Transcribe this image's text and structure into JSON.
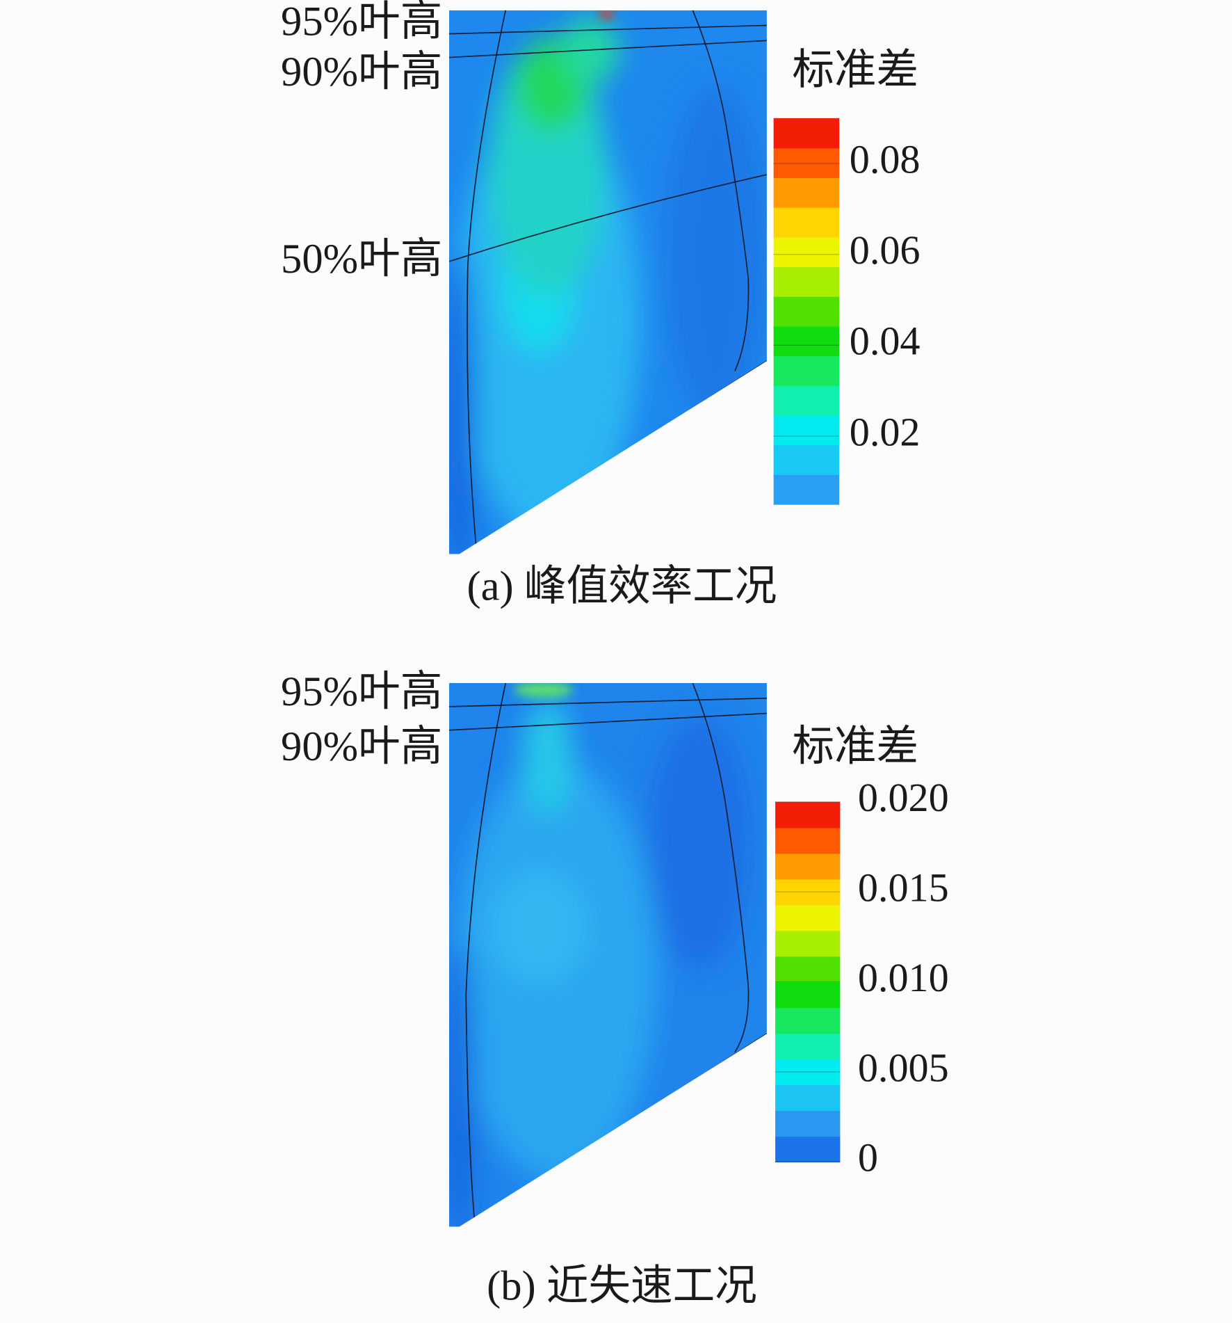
{
  "chart_data": [
    {
      "type": "contour",
      "title": "(a) 峰值效率工况",
      "colorbar_label": "标准差",
      "annotations": [
        "95%叶高",
        "90%叶高",
        "50%叶高"
      ],
      "clim": [
        0.005,
        0.09
      ],
      "cticks": [
        0.02,
        0.04,
        0.06,
        0.08
      ],
      "colors": [
        "#2a9ef2",
        "#19c8f4",
        "#00eaf0",
        "#10eeb0",
        "#18e860",
        "#10dc10",
        "#4fe000",
        "#a8ee00",
        "#ecf400",
        "#ffd400",
        "#ff9a00",
        "#ff5a00",
        "#f41e06"
      ]
    },
    {
      "type": "contour",
      "title": "(b) 近失速工况",
      "colorbar_label": "标准差",
      "annotations": [
        "95%叶高",
        "90%叶高"
      ],
      "clim": [
        0,
        0.02
      ],
      "cticks": [
        0,
        {
          "value": 0.005,
          "label": "0.005"
        },
        {
          "value": 0.01,
          "label": "0.010"
        },
        {
          "value": 0.015,
          "label": "0.015"
        },
        {
          "value": 0.02,
          "label": "0.020"
        }
      ],
      "colors": [
        "#1c72e8",
        "#2a98f0",
        "#1cc4f4",
        "#00eaf0",
        "#10eeb0",
        "#18e860",
        "#10dc10",
        "#4fe000",
        "#a8ee00",
        "#ecf400",
        "#ffd400",
        "#ff9a00",
        "#ff5a00",
        "#f41e06"
      ]
    }
  ]
}
